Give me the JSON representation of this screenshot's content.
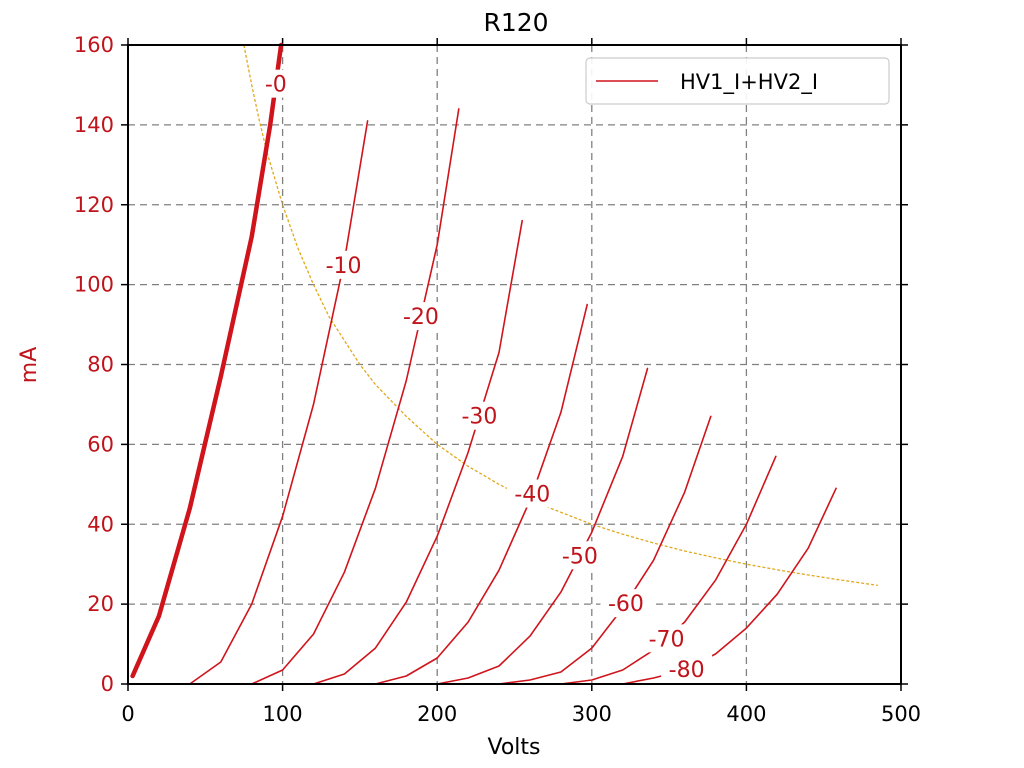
{
  "chart_data": {
    "type": "line",
    "title": "R120",
    "xlabel": "Volts",
    "ylabel": "mA",
    "xlim": [
      0,
      500
    ],
    "ylim": [
      0,
      160
    ],
    "x_ticks": [
      0,
      100,
      200,
      300,
      400,
      500
    ],
    "y_ticks": [
      0,
      20,
      40,
      60,
      80,
      100,
      120,
      140,
      160
    ],
    "grid": true,
    "legend": {
      "position": "top-right",
      "entries": [
        "HV1_I+HV2_I"
      ]
    },
    "colors": {
      "curve": "#d0141c",
      "load_line": "#e0a81c",
      "ylabel": "#c0141c",
      "grid": "#808080"
    },
    "series": [
      {
        "label": "-0",
        "bold": true,
        "points": [
          [
            3,
            2
          ],
          [
            20,
            17
          ],
          [
            40,
            44
          ],
          [
            60,
            77
          ],
          [
            80,
            112
          ],
          [
            92,
            140
          ],
          [
            99,
            160
          ]
        ]
      },
      {
        "label": "-10",
        "points": [
          [
            0,
            0
          ],
          [
            40,
            0
          ],
          [
            60,
            5.5
          ],
          [
            80,
            20
          ],
          [
            100,
            42
          ],
          [
            120,
            70
          ],
          [
            140,
            106
          ],
          [
            155,
            141
          ]
        ]
      },
      {
        "label": "-20",
        "points": [
          [
            0,
            0
          ],
          [
            80,
            0
          ],
          [
            100,
            3.5
          ],
          [
            120,
            12.5
          ],
          [
            140,
            28
          ],
          [
            160,
            49
          ],
          [
            180,
            76
          ],
          [
            200,
            110
          ],
          [
            214,
            144
          ]
        ]
      },
      {
        "label": "-30",
        "points": [
          [
            0,
            0
          ],
          [
            120,
            0
          ],
          [
            140,
            2.5
          ],
          [
            160,
            9
          ],
          [
            180,
            20.5
          ],
          [
            200,
            37
          ],
          [
            220,
            58
          ],
          [
            240,
            83
          ],
          [
            255,
            116
          ]
        ]
      },
      {
        "label": "-40",
        "points": [
          [
            0,
            0
          ],
          [
            160,
            0
          ],
          [
            180,
            2
          ],
          [
            200,
            6.5
          ],
          [
            220,
            15.5
          ],
          [
            240,
            28.5
          ],
          [
            260,
            46
          ],
          [
            280,
            68
          ],
          [
            297,
            95
          ]
        ]
      },
      {
        "label": "-50",
        "points": [
          [
            0,
            0
          ],
          [
            200,
            0
          ],
          [
            220,
            1.5
          ],
          [
            240,
            4.5
          ],
          [
            260,
            12
          ],
          [
            280,
            23
          ],
          [
            300,
            38
          ],
          [
            320,
            57
          ],
          [
            336,
            79
          ]
        ]
      },
      {
        "label": "-60",
        "points": [
          [
            0,
            0
          ],
          [
            240,
            0
          ],
          [
            260,
            1
          ],
          [
            280,
            3
          ],
          [
            300,
            9
          ],
          [
            320,
            19
          ],
          [
            340,
            31
          ],
          [
            360,
            48
          ],
          [
            377,
            67
          ]
        ]
      },
      {
        "label": "-70",
        "points": [
          [
            0,
            0
          ],
          [
            280,
            0
          ],
          [
            300,
            1
          ],
          [
            320,
            3.5
          ],
          [
            340,
            8.5
          ],
          [
            360,
            15.5
          ],
          [
            380,
            26
          ],
          [
            400,
            40
          ],
          [
            419,
            57
          ]
        ]
      },
      {
        "label": "-80",
        "points": [
          [
            0,
            0
          ],
          [
            320,
            0
          ],
          [
            340,
            1.5
          ],
          [
            360,
            3.5
          ],
          [
            380,
            7.5
          ],
          [
            400,
            14
          ],
          [
            420,
            22.5
          ],
          [
            440,
            34
          ],
          [
            458,
            49
          ]
        ]
      }
    ],
    "load_line": {
      "style": "dashed",
      "points": [
        [
          75,
          160
        ],
        [
          80,
          150
        ],
        [
          85,
          141
        ],
        [
          90,
          133
        ],
        [
          100,
          120
        ],
        [
          110,
          109
        ],
        [
          120,
          100
        ],
        [
          130,
          92
        ],
        [
          140,
          86
        ],
        [
          150,
          80
        ],
        [
          160,
          75
        ],
        [
          180,
          67
        ],
        [
          200,
          60
        ],
        [
          220,
          54.5
        ],
        [
          240,
          50
        ],
        [
          260,
          46
        ],
        [
          280,
          43
        ],
        [
          300,
          40
        ],
        [
          320,
          37.5
        ],
        [
          340,
          35.3
        ],
        [
          360,
          33.3
        ],
        [
          380,
          31.6
        ],
        [
          400,
          30
        ],
        [
          420,
          28.6
        ],
        [
          440,
          27.3
        ],
        [
          460,
          26.1
        ],
        [
          485,
          24.7
        ]
      ]
    }
  }
}
